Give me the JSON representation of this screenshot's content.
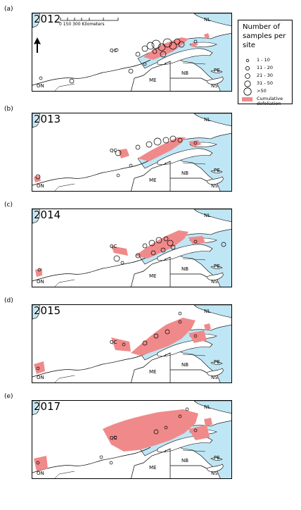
{
  "panels": [
    {
      "letter": "(a)",
      "year": "2012"
    },
    {
      "letter": "(b)",
      "year": "2013"
    },
    {
      "letter": "(c)",
      "year": "2014"
    },
    {
      "letter": "(d)",
      "year": "2015"
    },
    {
      "letter": "(e)",
      "year": "2017"
    }
  ],
  "map_labels": {
    "nl": "NL",
    "qc": "QC",
    "on": "ON",
    "me": "ME",
    "nb": "NB",
    "pe": "PE",
    "ns": "NS"
  },
  "scale_bar": {
    "ticks": "0    150   300 Kilometers"
  },
  "legend": {
    "title": "Number of samples per site",
    "items": [
      "1 - 10",
      "11 - 20",
      "21 - 30",
      "31 - 50",
      ">50"
    ],
    "defoliation_label": "Cumulative defoliation"
  },
  "colors": {
    "water": "#bfe6f5",
    "defoliation": "#f08a8a",
    "land": "#ffffff",
    "outline": "#000000"
  },
  "icons": {
    "north_arrow": "north-arrow-icon"
  }
}
